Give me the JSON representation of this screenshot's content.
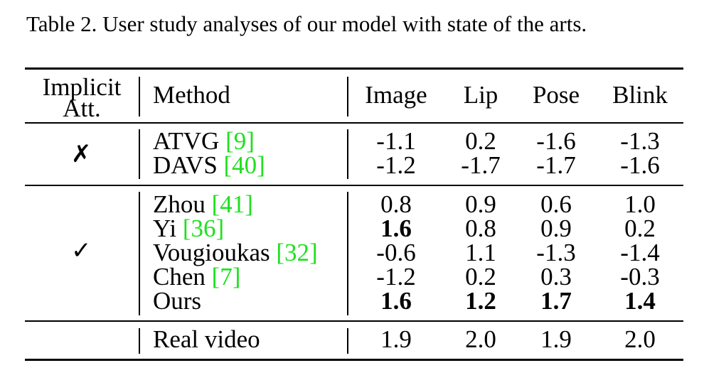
{
  "caption": "Table 2. User study analyses of our model with state of the arts.",
  "header": {
    "implicit_line1": "Implicit",
    "implicit_line2": "Att.",
    "method": "Method",
    "image": "Image",
    "lip": "Lip",
    "pose": "Pose",
    "blink": "Blink"
  },
  "group_without": {
    "mark": "✗",
    "rows": [
      {
        "method": "ATVG ",
        "ref": "[9]",
        "image": "-1.1",
        "lip": "0.2",
        "pose": "-1.6",
        "blink": "-1.3"
      },
      {
        "method": "DAVS ",
        "ref": "[40]",
        "image": "-1.2",
        "lip": "-1.7",
        "pose": "-1.7",
        "blink": "-1.6"
      }
    ]
  },
  "group_with": {
    "mark": "✓",
    "rows": [
      {
        "method": "Zhou ",
        "ref": "[41]",
        "image": "0.8",
        "lip": "0.9",
        "pose": "0.6",
        "blink": "1.0"
      },
      {
        "method": "Yi ",
        "ref": "[36]",
        "image": "1.6",
        "lip": "0.8",
        "pose": "0.9",
        "blink": "0.2"
      },
      {
        "method": "Vougioukas ",
        "ref": "[32]",
        "image": "-0.6",
        "lip": "1.1",
        "pose": "-1.3",
        "blink": "-1.4"
      },
      {
        "method": "Chen ",
        "ref": "[7]",
        "image": "-1.2",
        "lip": "0.2",
        "pose": "0.3",
        "blink": "-0.3"
      },
      {
        "method": "Ours",
        "ref": "",
        "image": "1.6",
        "lip": "1.2",
        "pose": "1.7",
        "blink": "1.4"
      }
    ]
  },
  "real_video": {
    "method": "Real video",
    "image": "1.9",
    "lip": "2.0",
    "pose": "1.9",
    "blink": "2.0"
  }
}
